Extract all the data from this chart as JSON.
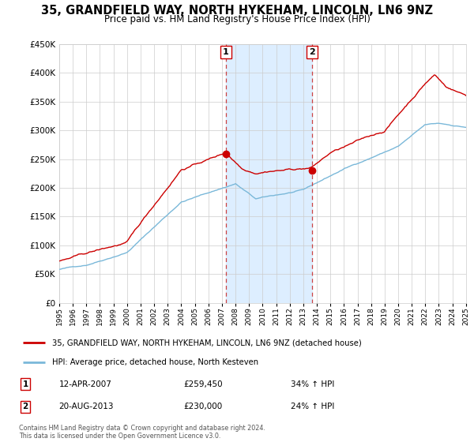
{
  "title": "35, GRANDFIELD WAY, NORTH HYKEHAM, LINCOLN, LN6 9NZ",
  "subtitle": "Price paid vs. HM Land Registry's House Price Index (HPI)",
  "legend_line1": "35, GRANDFIELD WAY, NORTH HYKEHAM, LINCOLN, LN6 9NZ (detached house)",
  "legend_line2": "HPI: Average price, detached house, North Kesteven",
  "footnote1": "Contains HM Land Registry data © Crown copyright and database right 2024.",
  "footnote2": "This data is licensed under the Open Government Licence v3.0.",
  "marker1_label": "1",
  "marker1_date": "12-APR-2007",
  "marker1_price": "£259,450",
  "marker1_hpi": "34% ↑ HPI",
  "marker1_year": 2007.28,
  "marker1_value": 259450,
  "marker2_label": "2",
  "marker2_date": "20-AUG-2013",
  "marker2_price": "£230,000",
  "marker2_hpi": "24% ↑ HPI",
  "marker2_year": 2013.63,
  "marker2_value": 230000,
  "hpi_color": "#7ab8d9",
  "price_color": "#cc0000",
  "shaded_color": "#ddeeff",
  "grid_color": "#cccccc",
  "background_color": "#ffffff",
  "ylim": [
    0,
    450000
  ],
  "xlim": [
    1995,
    2025
  ],
  "title_fontsize": 10.5,
  "subtitle_fontsize": 8.5
}
